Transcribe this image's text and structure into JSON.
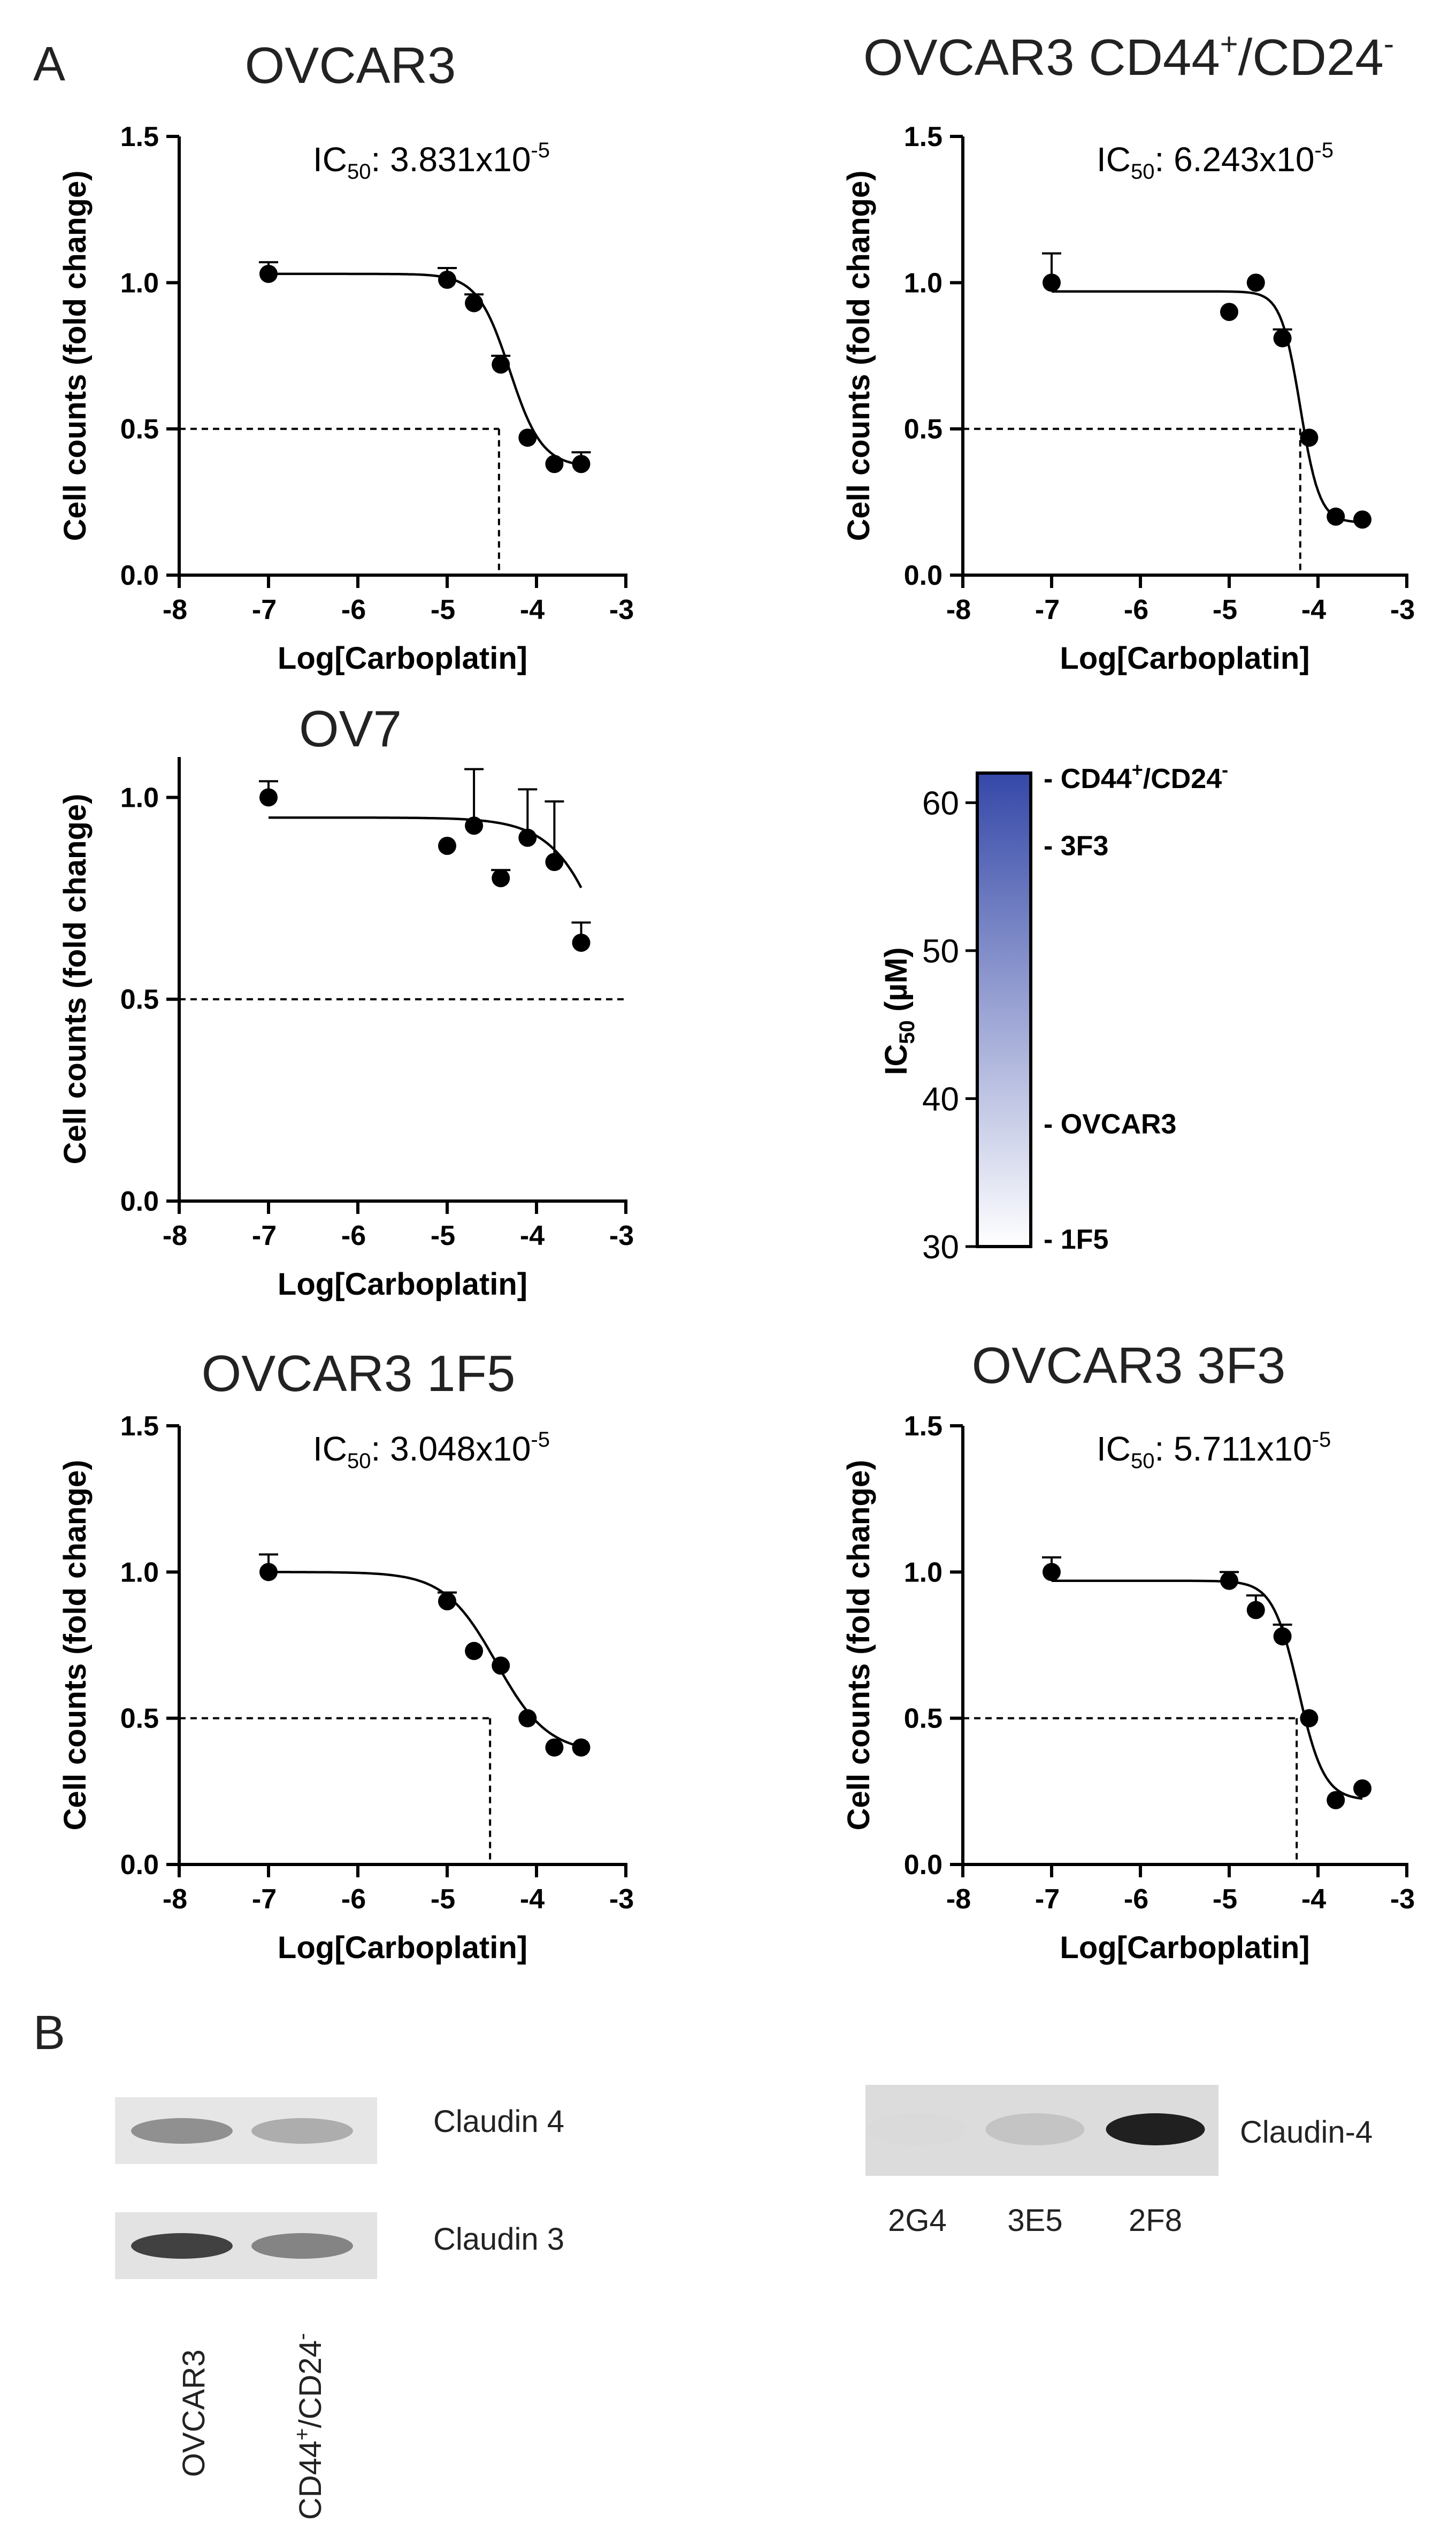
{
  "panel_labels": [
    "A",
    "B"
  ],
  "chart_data": [
    {
      "type": "scatter",
      "id": "ovcar3",
      "title": "OVCAR3",
      "xlabel": "Log[Carboplatin]",
      "ylabel": "Cell counts (fold change)",
      "xlim": [
        -8,
        -3
      ],
      "ylim": [
        0,
        1.5
      ],
      "xticks": [
        "-8",
        "-7",
        "-6",
        "-5",
        "-4",
        "-3"
      ],
      "yticks": [
        "0.0",
        "0.5",
        "1.0",
        "1.5"
      ],
      "ic50_label": {
        "prefix": "IC",
        "sub": "50",
        "value": ": 3.831x10",
        "exp": "-5"
      },
      "ic50_log": -4.42,
      "fit": {
        "top": 1.03,
        "bottom": 0.37,
        "logec50": -4.3,
        "hill": 2.4
      },
      "x": [
        -7,
        -5,
        -4.7,
        -4.4,
        -4.1,
        -3.8,
        -3.5
      ],
      "y": [
        1.03,
        1.01,
        0.93,
        0.72,
        0.47,
        0.38,
        0.38
      ],
      "error": [
        0.04,
        0.04,
        0.03,
        0.03,
        0.0,
        0.0,
        0.04
      ],
      "cutoff": 0.5
    },
    {
      "type": "scatter",
      "id": "cd44",
      "title": "OVCAR3 CD44",
      "title_sup1": "+",
      "title_mid": "/CD24",
      "title_sup2": "-",
      "xlabel": "Log[Carboplatin]",
      "ylabel": "Cell counts (fold change)",
      "xlim": [
        -8,
        -3
      ],
      "ylim": [
        0,
        1.5
      ],
      "xticks": [
        "-8",
        "-7",
        "-6",
        "-5",
        "-4",
        "-3"
      ],
      "yticks": [
        "0.0",
        "0.5",
        "1.0",
        "1.5"
      ],
      "ic50_label": {
        "prefix": "IC",
        "sub": "50",
        "value": ": 6.243x10",
        "exp": "-5"
      },
      "ic50_log": -4.2,
      "fit": {
        "top": 0.97,
        "bottom": 0.18,
        "logec50": -4.2,
        "hill": 4.0
      },
      "x": [
        -7,
        -5,
        -4.7,
        -4.4,
        -4.1,
        -3.8,
        -3.5
      ],
      "y": [
        1.0,
        0.9,
        1.0,
        0.81,
        0.47,
        0.2,
        0.19
      ],
      "error": [
        0.1,
        0.0,
        0.0,
        0.03,
        0.0,
        0.0,
        0.0
      ],
      "cutoff": 0.5
    },
    {
      "type": "scatter",
      "id": "ov7",
      "title": "OV7",
      "xlabel": "Log[Carboplatin]",
      "ylabel": "Cell counts (fold change)",
      "xlim": [
        -8,
        -3
      ],
      "ylim": [
        0,
        1.1
      ],
      "xticks": [
        "-8",
        "-7",
        "-6",
        "-5",
        "-4",
        "-3"
      ],
      "yticks": [
        "0.0",
        "0.5",
        "1.0"
      ],
      "fit": {
        "top": 0.95,
        "bottom": 0.0,
        "logec50": -3.0,
        "hill": 1.3
      },
      "x": [
        -7,
        -5,
        -4.7,
        -4.4,
        -4.1,
        -3.8,
        -3.5
      ],
      "y": [
        1.0,
        0.88,
        0.93,
        0.8,
        0.9,
        0.84,
        0.64
      ],
      "error": [
        0.04,
        0.0,
        0.14,
        0.02,
        0.12,
        0.15,
        0.05
      ],
      "cutoff": 0.5
    },
    {
      "type": "scatter",
      "id": "1f5",
      "title": "OVCAR3 1F5",
      "xlabel": "Log[Carboplatin]",
      "ylabel": "Cell counts (fold change)",
      "xlim": [
        -8,
        -3
      ],
      "ylim": [
        0,
        1.5
      ],
      "xticks": [
        "-8",
        "-7",
        "-6",
        "-5",
        "-4",
        "-3"
      ],
      "yticks": [
        "0.0",
        "0.5",
        "1.0",
        "1.5"
      ],
      "ic50_label": {
        "prefix": "IC",
        "sub": "50",
        "value": ": 3.048x10",
        "exp": "-5"
      },
      "ic50_log": -4.52,
      "fit": {
        "top": 1.0,
        "bottom": 0.38,
        "logec50": -4.45,
        "hill": 1.5
      },
      "x": [
        -7,
        -5,
        -4.7,
        -4.4,
        -4.1,
        -3.8,
        -3.5
      ],
      "y": [
        1.0,
        0.9,
        0.73,
        0.68,
        0.5,
        0.4,
        0.4
      ],
      "error": [
        0.06,
        0.03,
        0.0,
        0.0,
        0.0,
        0.0,
        0.0
      ],
      "cutoff": 0.5
    },
    {
      "type": "scatter",
      "id": "3f3",
      "title": "OVCAR3 3F3",
      "xlabel": "Log[Carboplatin]",
      "ylabel": "Cell counts (fold change)",
      "xlim": [
        -8,
        -3
      ],
      "ylim": [
        0,
        1.5
      ],
      "xticks": [
        "-8",
        "-7",
        "-6",
        "-5",
        "-4",
        "-3"
      ],
      "yticks": [
        "0.0",
        "0.5",
        "1.0",
        "1.5"
      ],
      "ic50_label": {
        "prefix": "IC",
        "sub": "50",
        "value": ": 5.711x10",
        "exp": "-5"
      },
      "ic50_log": -4.24,
      "fit": {
        "top": 0.97,
        "bottom": 0.22,
        "logec50": -4.22,
        "hill": 3.0
      },
      "x": [
        -7,
        -5,
        -4.7,
        -4.4,
        -4.1,
        -3.8,
        -3.5
      ],
      "y": [
        1.0,
        0.97,
        0.87,
        0.78,
        0.5,
        0.22,
        0.26
      ],
      "error": [
        0.05,
        0.03,
        0.05,
        0.04,
        0.0,
        0.0,
        0.0
      ],
      "cutoff": 0.5
    }
  ],
  "ic50_scale": {
    "ylabel_prefix": "IC",
    "ylabel_sub": "50",
    "ylabel_unit": " (µM)",
    "ylim": [
      30,
      62
    ],
    "ticks": [
      "30",
      "40",
      "50",
      "60"
    ],
    "color_low": "#ffffff",
    "color_high": "#3548a8",
    "markers": [
      {
        "label": "- CD44",
        "sup1": "+",
        "mid": "/CD24",
        "sup2": "-",
        "value": 62.4
      },
      {
        "label": "- 3F3",
        "value": 57.1
      },
      {
        "label": "- OVCAR3",
        "value": 38.3
      },
      {
        "label": "- 1F5",
        "value": 30.5
      }
    ]
  },
  "blots": {
    "left": {
      "rows": [
        {
          "label": "Claudin 4",
          "bands": [
            0.55,
            0.42
          ]
        },
        {
          "label": "Claudin 3",
          "bands": [
            0.85,
            0.6
          ]
        }
      ],
      "lanes": [
        {
          "label": "OVCAR3"
        },
        {
          "label": "CD44",
          "sup1": "+",
          "mid": "/CD24",
          "sup2": "-"
        }
      ]
    },
    "right": {
      "label": "Claudin-4",
      "lanes": [
        "2G4",
        "3E5",
        "2F8"
      ],
      "bands": [
        0.05,
        0.25,
        0.95
      ]
    }
  }
}
